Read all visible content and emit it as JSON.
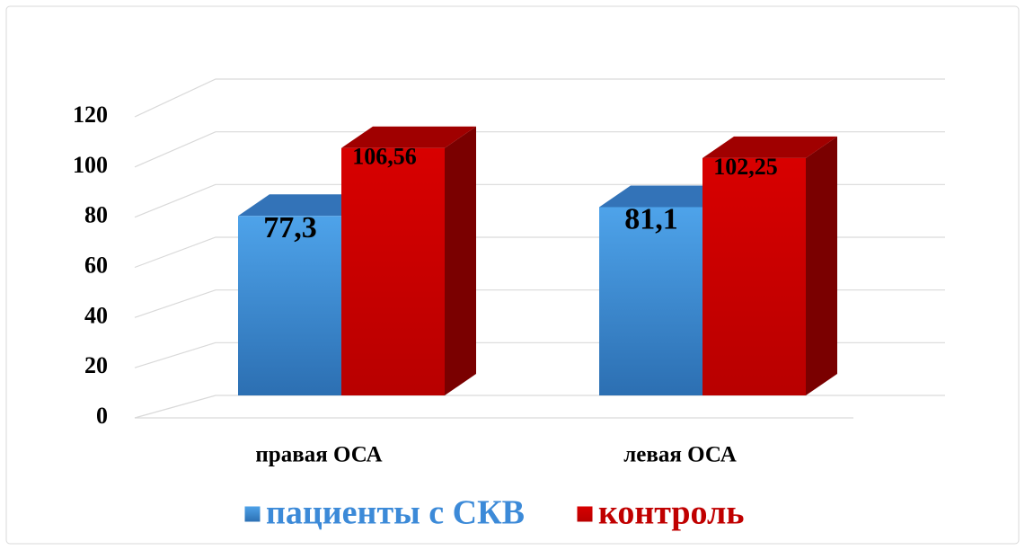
{
  "chart_data": {
    "type": "bar3d",
    "categories": [
      "правая ОСА",
      "левая ОСА"
    ],
    "series": [
      {
        "name": "пациенты с СКВ",
        "color": "#3c8ad8",
        "values": [
          77.3,
          81.1
        ],
        "value_labels": [
          "77,3",
          "81,1"
        ]
      },
      {
        "name": "контроль",
        "color": "#c00000",
        "values": [
          106.56,
          102.25
        ],
        "value_labels": [
          "106,56",
          "102,25"
        ]
      }
    ],
    "ylim": [
      0,
      120
    ],
    "yticks": [
      0,
      20,
      40,
      60,
      80,
      100,
      120
    ],
    "grid": true,
    "legend": "bottom"
  }
}
